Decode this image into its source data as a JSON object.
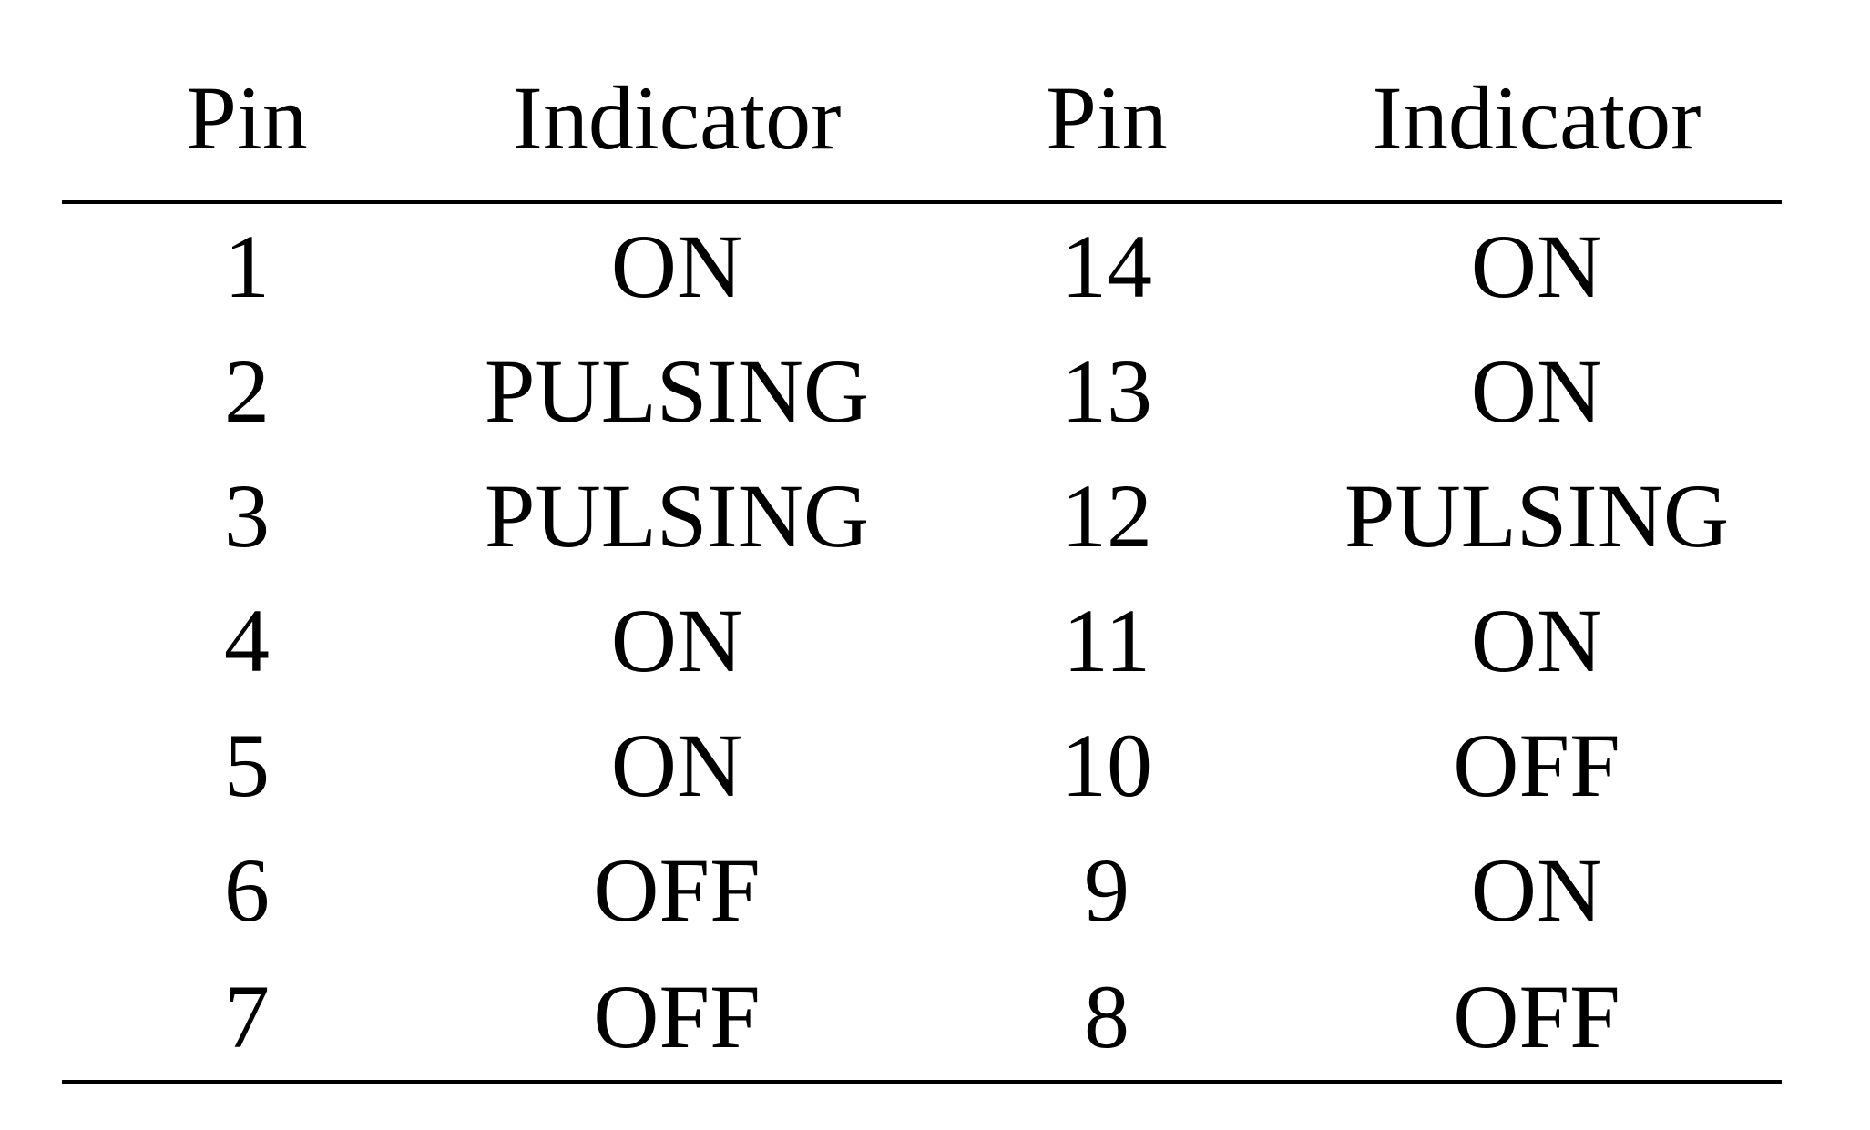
{
  "table": {
    "headers": [
      "Pin",
      "Indicator",
      "Pin",
      "Indicator"
    ],
    "rows": [
      [
        "1",
        "ON",
        "14",
        "ON"
      ],
      [
        "2",
        "PULSING",
        "13",
        "ON"
      ],
      [
        "3",
        "PULSING",
        "12",
        "PULSING"
      ],
      [
        "4",
        "ON",
        "11",
        "ON"
      ],
      [
        "5",
        "ON",
        "10",
        "OFF"
      ],
      [
        "6",
        "OFF",
        "9",
        "ON"
      ],
      [
        "7",
        "OFF",
        "8",
        "OFF"
      ]
    ]
  }
}
